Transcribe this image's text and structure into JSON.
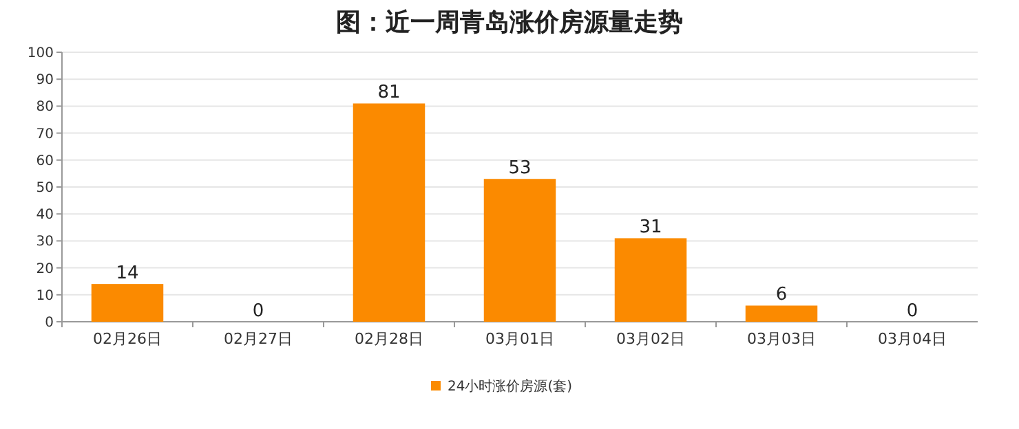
{
  "chart_data": {
    "type": "bar",
    "title": "图：近一周青岛涨价房源量走势",
    "categories": [
      "02月26日",
      "02月27日",
      "02月28日",
      "03月01日",
      "03月02日",
      "03月03日",
      "03月04日"
    ],
    "series": [
      {
        "name": "24小时涨价房源(套)",
        "color": "#fb8a00",
        "values": [
          14,
          0,
          81,
          53,
          31,
          6,
          0
        ]
      }
    ],
    "ylim": [
      0,
      100
    ],
    "yticks": [
      0,
      10,
      20,
      30,
      40,
      50,
      60,
      70,
      80,
      90,
      100
    ],
    "grid": "y",
    "legend": "bottom",
    "data_labels": true
  }
}
